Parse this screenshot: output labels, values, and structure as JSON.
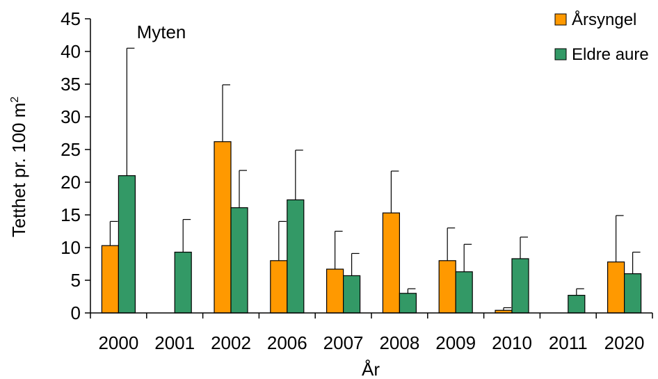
{
  "chart_data": {
    "type": "bar",
    "annotation": "Myten",
    "xlabel": "År",
    "ylabel_text": "Tetthet pr. 100 m",
    "ylabel_superscript": "2",
    "ylim": [
      0,
      45
    ],
    "yticks": [
      0,
      5,
      10,
      15,
      20,
      25,
      30,
      35,
      40,
      45
    ],
    "grid": false,
    "legend_position": "top-right",
    "categories": [
      "2000",
      "2001",
      "2002",
      "2006",
      "2007",
      "2008",
      "2009",
      "2010",
      "2011",
      "2020"
    ],
    "series": [
      {
        "name": "Årsyngel",
        "color": "#FF9900",
        "values": [
          10.3,
          null,
          26.2,
          8.0,
          6.7,
          15.3,
          8.0,
          0.4,
          null,
          7.8
        ],
        "error_upper": [
          14.0,
          null,
          34.9,
          14.0,
          12.5,
          21.7,
          13.0,
          0.8,
          null,
          14.9
        ]
      },
      {
        "name": "Eldre aure",
        "color": "#339966",
        "values": [
          21.0,
          9.3,
          16.1,
          17.3,
          5.7,
          3.0,
          6.3,
          8.3,
          2.7,
          6.0
        ],
        "error_upper": [
          40.5,
          14.3,
          21.8,
          24.9,
          9.1,
          3.7,
          10.5,
          11.6,
          3.7,
          9.3
        ]
      }
    ]
  }
}
